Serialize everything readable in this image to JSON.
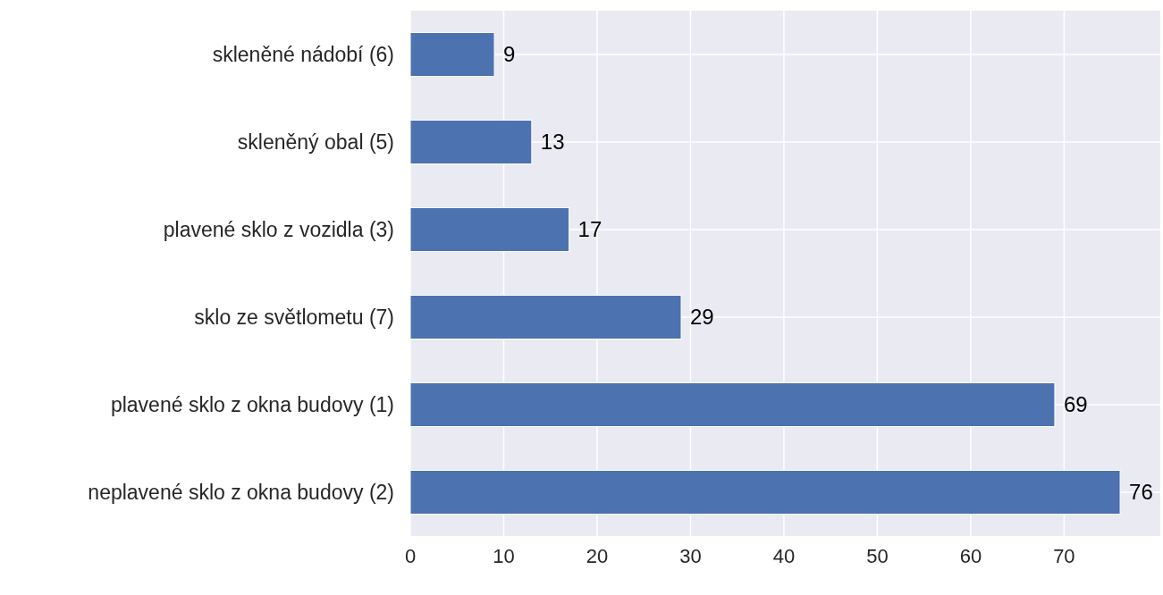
{
  "chart_data": {
    "type": "bar",
    "orientation": "horizontal",
    "categories": [
      "skleněné nádobí (6)",
      "skleněný obal (5)",
      "plavené sklo z vozidla (3)",
      "sklo ze světlometu (7)",
      "plavené sklo z okna budovy (1)",
      "neplavené sklo z okna budovy (2)"
    ],
    "values": [
      9,
      13,
      17,
      29,
      69,
      76
    ],
    "color": "#4c72b0",
    "xlim": [
      0,
      80.3
    ],
    "xticks": [
      0,
      10,
      20,
      30,
      40,
      50,
      60,
      70
    ],
    "grid": true,
    "data_labels": true
  }
}
